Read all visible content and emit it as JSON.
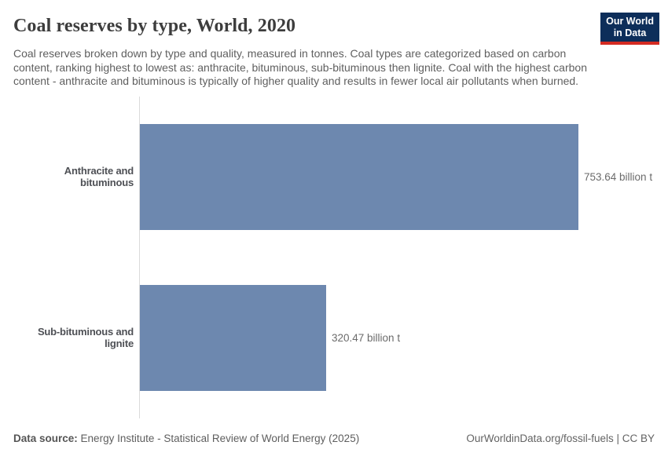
{
  "header": {
    "title": "Coal reserves by type, World, 2020",
    "subtitle": "Coal reserves broken down by type and quality, measured in tonnes. Coal types are categorized based on carbon content, ranking highest to lowest as: anthracite, bituminous, sub-bituminous then lignite. Coal with the highest carbon content - anthracite and bituminous is typically of higher quality and results in fewer local air pollutants when burned.",
    "logo": {
      "line1": "Our World",
      "line2": "in Data",
      "bg_color": "#0d2e5a",
      "accent_color": "#d42b22"
    }
  },
  "chart_data": {
    "type": "bar",
    "orientation": "horizontal",
    "title": "Coal reserves by type, World, 2020",
    "unit": "billion t",
    "xlim": [
      0,
      753.64
    ],
    "grid": false,
    "legend": "none",
    "bar_color": "#6d88af",
    "categories": [
      "Anthracite and bituminous",
      "Sub-bituminous and lignite"
    ],
    "values": [
      753.64,
      320.47
    ],
    "bars": [
      {
        "label": "Anthracite and bituminous",
        "value": 753.64,
        "value_label": "753.64 billion t"
      },
      {
        "label": "Sub-bituminous and lignite",
        "value": 320.47,
        "value_label": "320.47 billion t"
      }
    ]
  },
  "footer": {
    "datasource_label": "Data source:",
    "datasource_text": "Energy Institute - Statistical Review of World Energy (2025)",
    "attribution": "OurWorldinData.org/fossil-fuels | CC BY"
  }
}
